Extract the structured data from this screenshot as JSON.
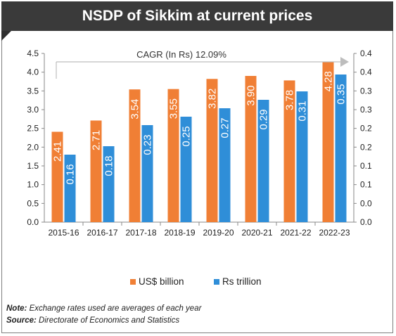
{
  "title": "NSDP of Sikkim at current prices",
  "chart_data": {
    "type": "bar",
    "categories": [
      "2015-16",
      "2016-17",
      "2017-18",
      "2018-19",
      "2019-20",
      "2020-21",
      "2021-22",
      "2022-23"
    ],
    "series": [
      {
        "name": "US$ billion",
        "axis": "left",
        "values": [
          2.41,
          2.71,
          3.54,
          3.55,
          3.82,
          3.9,
          3.78,
          4.28
        ],
        "labels": [
          "2.41",
          "2.71",
          "3.54",
          "3.55",
          "3.82",
          "3.90",
          "3.78",
          "4.28"
        ]
      },
      {
        "name": "Rs trillion",
        "axis": "right",
        "values": [
          0.16,
          0.18,
          0.23,
          0.25,
          0.27,
          0.29,
          0.31,
          0.35
        ],
        "labels": [
          "0.16",
          "0.18",
          "0.23",
          "0.25",
          "0.27",
          "0.29",
          "0.31",
          "0.35"
        ]
      }
    ],
    "y_left": {
      "ylim": [
        0,
        4.5
      ],
      "ticks": [
        "0.0",
        "0.5",
        "1.0",
        "1.5",
        "2.0",
        "2.5",
        "3.0",
        "3.5",
        "4.0",
        "4.5"
      ]
    },
    "y_right": {
      "ylim": [
        0,
        0.4
      ],
      "ticks": [
        "0.0",
        "0.0",
        "0.1",
        "0.1",
        "0.2",
        "0.2",
        "0.3",
        "0.3",
        "0.4",
        "0.4"
      ]
    },
    "annotation": "CAGR (In Rs) 12.09%",
    "grid": false,
    "legend_position": "bottom"
  },
  "colors": {
    "orange": "#f07f35",
    "blue": "#2f8ed8",
    "title_bg": "#3a3a3a"
  },
  "notes": {
    "note_label": "Note:",
    "note_text": " Exchange rates used are averages of each year",
    "source_label": "Source:",
    "source_text": " Directorate of Economics and Statistics"
  }
}
